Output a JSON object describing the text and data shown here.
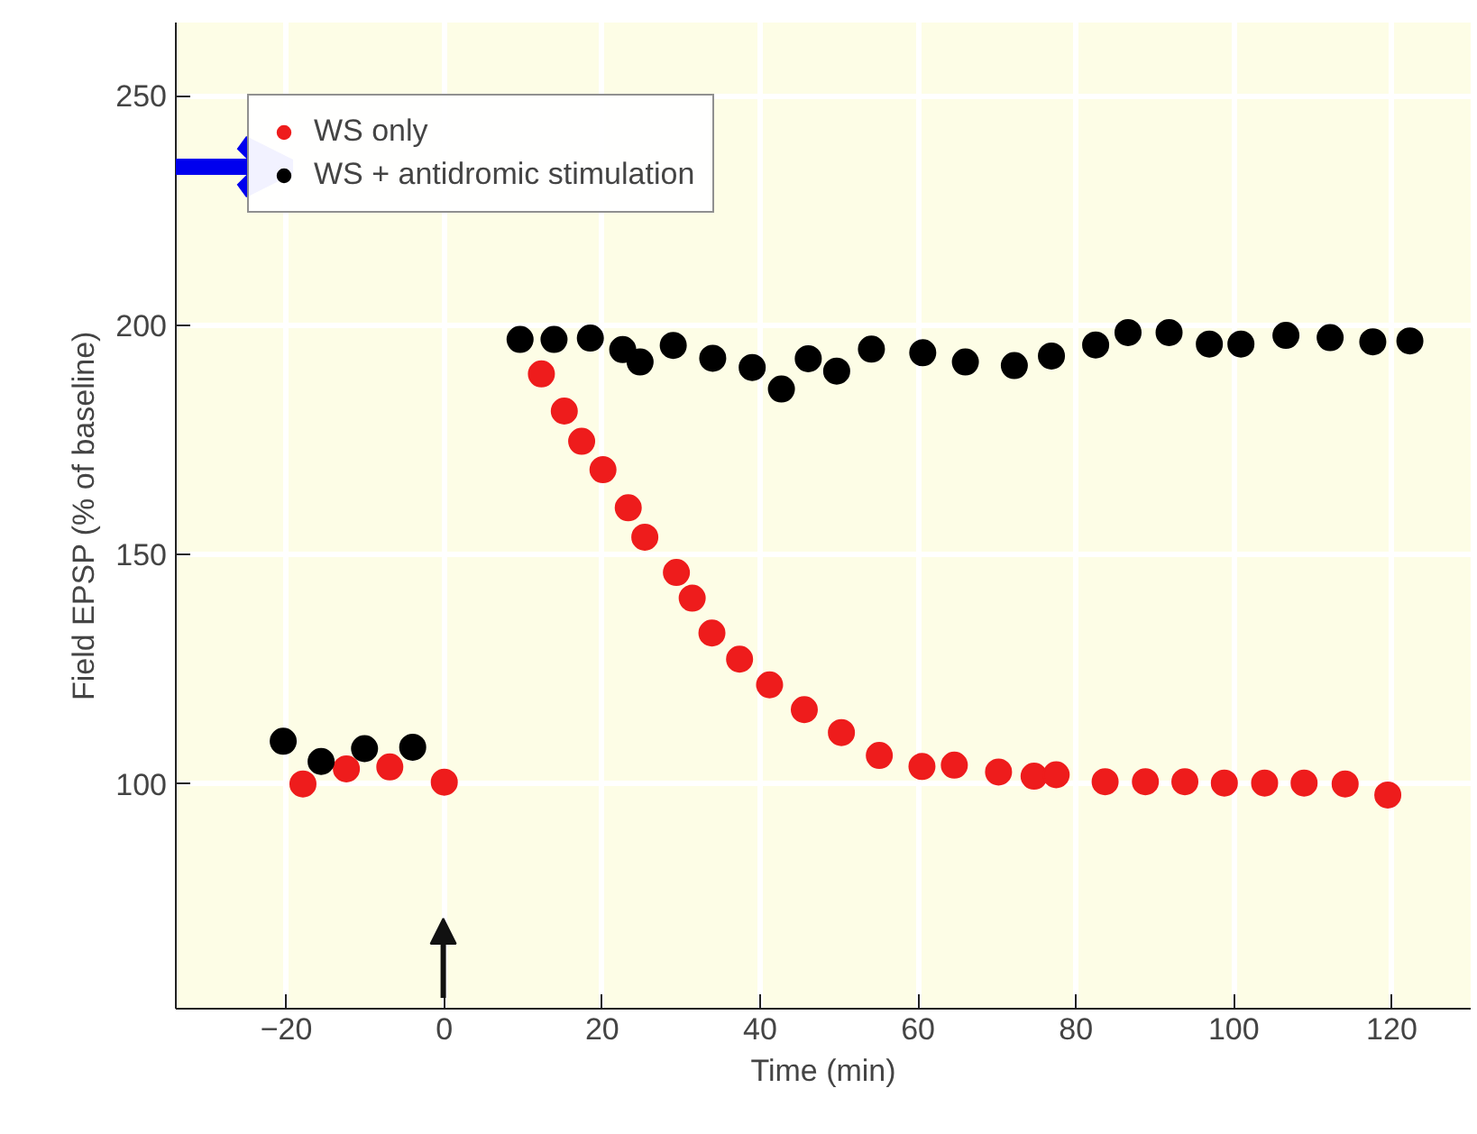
{
  "chart_data": {
    "type": "scatter",
    "xlabel": "Time (min)",
    "ylabel": "Field EPSP (% of baseline)",
    "xlim": [
      -34,
      130
    ],
    "ylim": [
      51,
      266
    ],
    "xticks": [
      -20,
      0,
      20,
      40,
      60,
      80,
      100,
      120
    ],
    "yticks": [
      100,
      150,
      200,
      250
    ],
    "grid": true,
    "legend": "top left",
    "marker": "circle",
    "series": [
      {
        "name": "WS only",
        "color": "#ee1c1c",
        "x": [
          -17.9,
          -12.4,
          -6.9,
          0,
          12.3,
          15.2,
          17.4,
          20.1,
          23.3,
          25.4,
          29.4,
          31.4,
          33.9,
          37.4,
          41.2,
          45.6,
          50.3,
          55.1,
          60.5,
          64.6,
          70.2,
          74.7,
          77.5,
          83.7,
          88.8,
          93.8,
          98.8,
          103.9,
          108.9,
          114.1,
          119.5
        ],
        "values": [
          100,
          103.3,
          103.7,
          100.4,
          189.4,
          181.3,
          174.7,
          168.5,
          160.2,
          153.8,
          146.1,
          140.5,
          132.9,
          127.2,
          121.6,
          116.2,
          111.2,
          106.2,
          103.8,
          104.1,
          102.6,
          101.7,
          102,
          100.5,
          100.5,
          100.5,
          100.2,
          100.2,
          100.2,
          100,
          97.6
        ]
      },
      {
        "name": "WS + antidromic stimulation",
        "color": "#000000",
        "x": [
          -20.4,
          -15.6,
          -10.1,
          -4,
          9.6,
          13.9,
          18.5,
          22.6,
          24.8,
          29,
          34,
          39,
          42.7,
          46.1,
          49.7,
          54.1,
          60.6,
          66,
          72.2,
          76.9,
          82.5,
          86.6,
          91.8,
          96.9,
          100.9,
          106.6,
          112.2,
          117.6,
          122.3
        ],
        "values": [
          109.3,
          104.9,
          107.7,
          108,
          196.9,
          196.9,
          197.2,
          194.7,
          192,
          195.6,
          192.8,
          190.8,
          186.1,
          192.7,
          190,
          194.8,
          194,
          192,
          191.2,
          193.3,
          195.7,
          198.4,
          198.4,
          195.9,
          195.9,
          197.8,
          197.3,
          196.4,
          196.6
        ]
      }
    ]
  }
}
